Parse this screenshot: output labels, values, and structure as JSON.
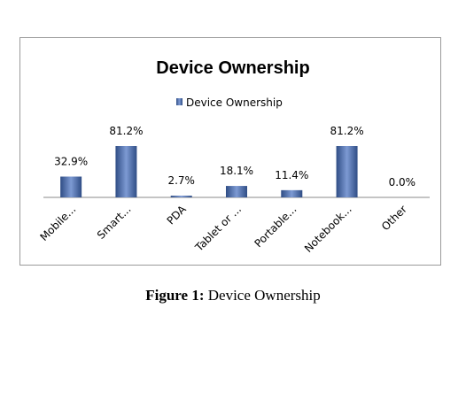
{
  "chart_data": {
    "type": "bar",
    "title": "Device Ownership",
    "legend": {
      "position": "top",
      "entries": [
        "Device Ownership"
      ]
    },
    "categories": [
      "Mobile...",
      "Smart...",
      "PDA",
      "Tablet or ...",
      "Portable...",
      "Notebook...",
      "Other"
    ],
    "series": [
      {
        "name": "Device Ownership",
        "values": [
          32.9,
          81.2,
          2.7,
          18.1,
          11.4,
          81.2,
          0.0
        ],
        "data_labels": [
          "32.9%",
          "81.2%",
          "2.7%",
          "18.1%",
          "11.4%",
          "81.2%",
          "0.0%"
        ]
      }
    ],
    "ylim": [
      0,
      81.2
    ],
    "grid": false,
    "colors": {
      "bar": "#4F6FAF",
      "bar_light": "#7D9AD3",
      "bar_dark": "#2F4D85",
      "axis": "#888888"
    }
  },
  "caption": {
    "label": "Figure 1:",
    "text": "Device Ownership"
  }
}
